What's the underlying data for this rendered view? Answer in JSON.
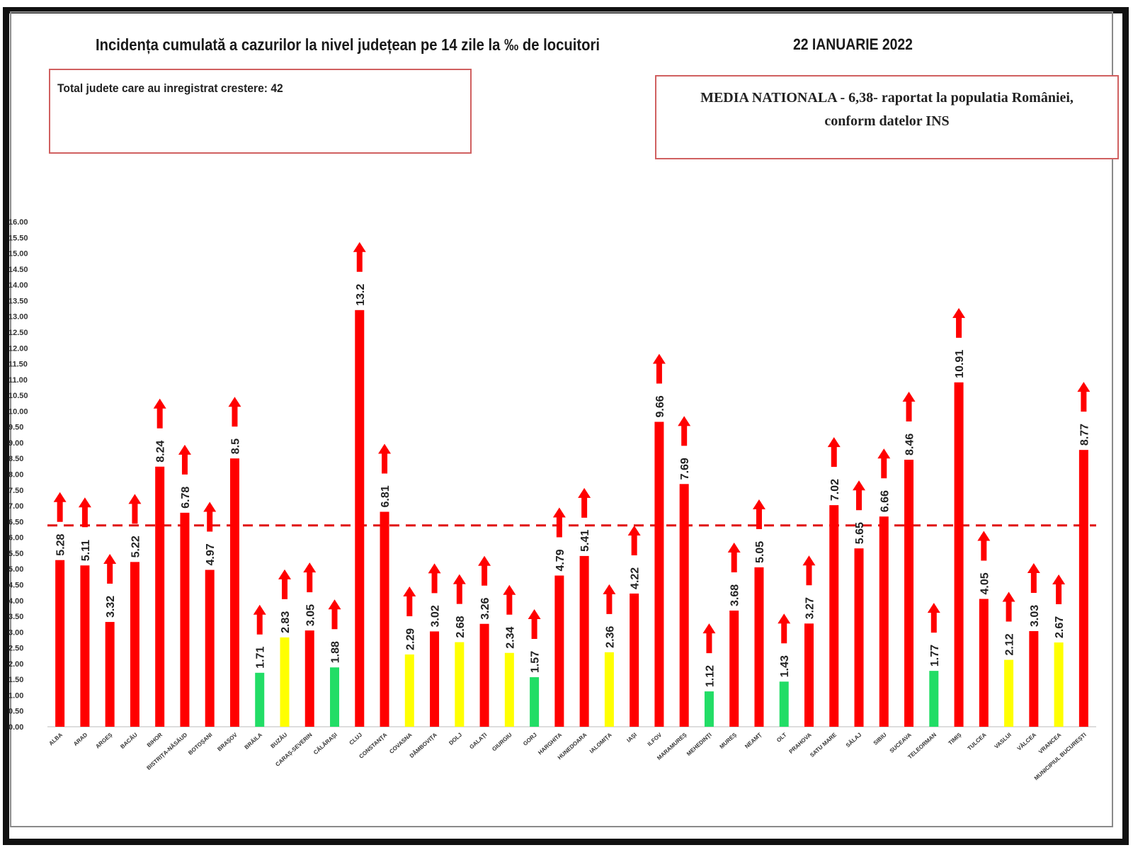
{
  "header": {
    "title": "Incidența cumulată a cazurilor la nivel județean pe 14 zile la ‰ de locuitori",
    "date": "22 IANUARIE 2022"
  },
  "info_left": {
    "text": "Total judete care au inregistrat crestere: 42"
  },
  "info_right": {
    "line1": "MEDIA NATIONALA - 6,38-  raportat la populatia României,",
    "line2": "conform datelor INS"
  },
  "colors": {
    "red": "#ff0000",
    "yellow": "#ffff00",
    "green": "#22dd66",
    "arrow": "#ff0000",
    "mean_line": "#e01010"
  },
  "chart_data": {
    "type": "bar",
    "title": "Incidența cumulată a cazurilor la nivel județean pe 14 zile la ‰ de locuitori",
    "xlabel": "",
    "ylabel": "",
    "ylim": [
      0,
      16
    ],
    "ytick_step": 0.5,
    "grid": false,
    "reference_line": {
      "value": 6.38,
      "label": "MEDIA NATIONALA",
      "style": "dashed"
    },
    "categories": [
      "ALBA",
      "ARAD",
      "ARGEȘ",
      "BACĂU",
      "BIHOR",
      "BISTRIȚA-NĂSĂUD",
      "BOTOȘANI",
      "BRAȘOV",
      "BRĂILA",
      "BUZĂU",
      "CARAȘ-SEVERIN",
      "CĂLĂRAȘI",
      "CLUJ",
      "CONSTANȚA",
      "COVASNA",
      "DÂMBOVIȚA",
      "DOLJ",
      "GALAȚI",
      "GIURGIU",
      "GORJ",
      "HARGHITA",
      "HUNEDOARA",
      "IALOMIȚA",
      "IAȘI",
      "ILFOV",
      "MARAMUREȘ",
      "MEHEDINȚI",
      "MUREȘ",
      "NEAMȚ",
      "OLT",
      "PRAHOVA",
      "SATU MARE",
      "SĂLAJ",
      "SIBIU",
      "SUCEAVA",
      "TELEORMAN",
      "TIMIȘ",
      "TULCEA",
      "VASLUI",
      "VÂLCEA",
      "VRANCEA",
      "MUNICIPIUL BUCUREȘTI"
    ],
    "values": [
      5.28,
      5.11,
      3.32,
      5.22,
      8.24,
      6.78,
      4.97,
      8.5,
      1.71,
      2.83,
      3.05,
      1.88,
      13.2,
      6.81,
      2.29,
      3.02,
      2.68,
      3.26,
      2.34,
      1.57,
      4.79,
      5.41,
      2.36,
      4.22,
      9.66,
      7.69,
      1.12,
      3.68,
      5.05,
      1.43,
      3.27,
      7.02,
      5.65,
      6.66,
      8.46,
      1.77,
      10.91,
      4.05,
      2.12,
      3.03,
      2.67,
      8.77
    ],
    "value_labels": [
      "5.28",
      "5.11",
      "3.32",
      "5.22",
      "8.24",
      "6.78",
      "4.97",
      "8.5",
      "1.71",
      "2.83",
      "3.05",
      "1.88",
      "13.2",
      "6.81",
      "2.29",
      "3.02",
      "2.68",
      "3.26",
      "2.34",
      "1.57",
      "4.79",
      "5.41",
      "2.36",
      "4.22",
      "9.66",
      "7.69",
      "1.12",
      "3.68",
      "5.05",
      "1.43",
      "3.27",
      "7.02",
      "5.65",
      "6.66",
      "8.46",
      "1.77",
      "10.91",
      "4.05",
      "2.12",
      "3.03",
      "2.67",
      "8.77"
    ],
    "bar_colors": [
      "red",
      "red",
      "red",
      "red",
      "red",
      "red",
      "red",
      "red",
      "green",
      "yellow",
      "red",
      "green",
      "red",
      "red",
      "yellow",
      "red",
      "yellow",
      "red",
      "yellow",
      "green",
      "red",
      "red",
      "yellow",
      "red",
      "red",
      "red",
      "green",
      "red",
      "red",
      "green",
      "red",
      "red",
      "red",
      "red",
      "red",
      "green",
      "red",
      "red",
      "yellow",
      "red",
      "yellow",
      "red"
    ],
    "trend": "up"
  }
}
